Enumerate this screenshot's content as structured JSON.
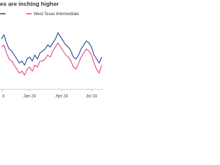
{
  "chart_data": {
    "type": "line",
    "title": "es are inching higher",
    "x": [
      0,
      1,
      2,
      3,
      4,
      5,
      6,
      7,
      8,
      9,
      10,
      11,
      12,
      13,
      14,
      15,
      16,
      17,
      18,
      19,
      20,
      21,
      22,
      23,
      24,
      25,
      26,
      27,
      28,
      29,
      30,
      31,
      32,
      33,
      34,
      35,
      36,
      37,
      38,
      39
    ],
    "series": [
      {
        "color": "#1f3f8f",
        "values": [
          88,
          90,
          86,
          83,
          82,
          80,
          78,
          76,
          77,
          75,
          78,
          79,
          77,
          80,
          78,
          81,
          82,
          83,
          85,
          84,
          86,
          88,
          91,
          89,
          87,
          85,
          84,
          82,
          79,
          78,
          80,
          83,
          85,
          87,
          86,
          84,
          80,
          78,
          76,
          79
        ]
      },
      {
        "name": "West Texas Intermediate",
        "color": "#e8407a",
        "values": [
          84,
          85,
          81,
          78,
          77,
          75,
          73,
          71,
          72,
          70,
          73,
          74,
          72,
          75,
          74,
          77,
          77,
          78,
          80,
          79,
          82,
          84,
          86,
          84,
          82,
          80,
          79,
          77,
          74,
          73,
          76,
          79,
          81,
          83,
          82,
          80,
          76,
          73,
          71,
          75
        ]
      }
    ],
    "xlim": [
      0,
      39
    ],
    "ylim": [
      65,
      95
    ],
    "xticks": [
      {
        "value": 0.3,
        "label": "3"
      },
      {
        "value": 11,
        "label": "Jan 24"
      },
      {
        "value": 23.5,
        "label": "Apr 24"
      },
      {
        "value": 35,
        "label": "Jul 24"
      }
    ]
  }
}
